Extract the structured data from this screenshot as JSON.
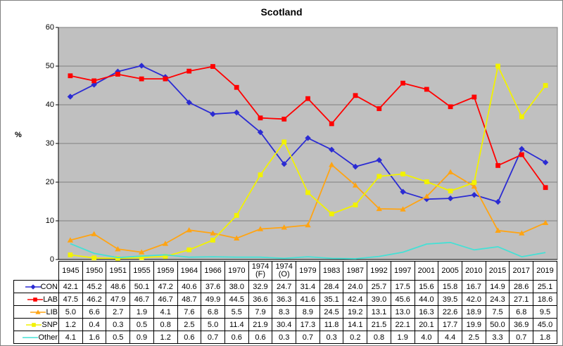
{
  "chart_data": {
    "type": "line",
    "title": "Scotland",
    "ylabel": "%",
    "ylim": [
      0,
      60
    ],
    "y_ticks": [
      0,
      10,
      20,
      30,
      40,
      50,
      60
    ],
    "grid": true,
    "plot_bg_color": "#C0C0C0",
    "grid_color": "#808080",
    "axis_color": "#000000",
    "legend_position": "table-left",
    "value_decimals": 1,
    "categories": [
      "1945",
      "1950",
      "1951",
      "1955",
      "1959",
      "1964",
      "1966",
      "1970",
      "1974 (F)",
      "1974 (O)",
      "1979",
      "1983",
      "1987",
      "1992",
      "1997",
      "2001",
      "2005",
      "2010",
      "2015",
      "2017",
      "2019"
    ],
    "series": [
      {
        "name": "CON",
        "color": "#2B2BD3",
        "marker": "diamond",
        "values": [
          42.1,
          45.2,
          48.6,
          50.1,
          47.2,
          40.6,
          37.6,
          38.0,
          32.9,
          24.7,
          31.4,
          28.4,
          24.0,
          25.7,
          17.5,
          15.6,
          15.8,
          16.7,
          14.9,
          28.6,
          25.1
        ]
      },
      {
        "name": "LAB",
        "color": "#FF0000",
        "marker": "square",
        "values": [
          47.5,
          46.2,
          47.9,
          46.7,
          46.7,
          48.7,
          49.9,
          44.5,
          36.6,
          36.3,
          41.6,
          35.1,
          42.4,
          39.0,
          45.6,
          44.0,
          39.5,
          42.0,
          24.3,
          27.1,
          18.6
        ]
      },
      {
        "name": "LIB",
        "color": "#FFA413",
        "marker": "triangle",
        "values": [
          5.0,
          6.6,
          2.7,
          1.9,
          4.1,
          7.6,
          6.8,
          5.5,
          7.9,
          8.3,
          8.9,
          24.5,
          19.2,
          13.1,
          13.0,
          16.3,
          22.6,
          18.9,
          7.5,
          6.8,
          9.5
        ]
      },
      {
        "name": "SNP",
        "color": "#F2F200",
        "marker": "square",
        "values": [
          1.2,
          0.4,
          0.3,
          0.5,
          0.8,
          2.5,
          5.0,
          11.4,
          21.9,
          30.4,
          17.3,
          11.8,
          14.1,
          21.5,
          22.1,
          20.1,
          17.7,
          19.9,
          50.0,
          36.9,
          45.0
        ]
      },
      {
        "name": "Other",
        "color": "#45E0D5",
        "marker": "none",
        "values": [
          4.1,
          1.6,
          0.5,
          0.9,
          1.2,
          0.6,
          0.7,
          0.6,
          0.6,
          0.3,
          0.7,
          0.3,
          0.2,
          0.8,
          1.9,
          4.0,
          4.4,
          2.5,
          3.3,
          0.7,
          1.8
        ]
      }
    ]
  }
}
